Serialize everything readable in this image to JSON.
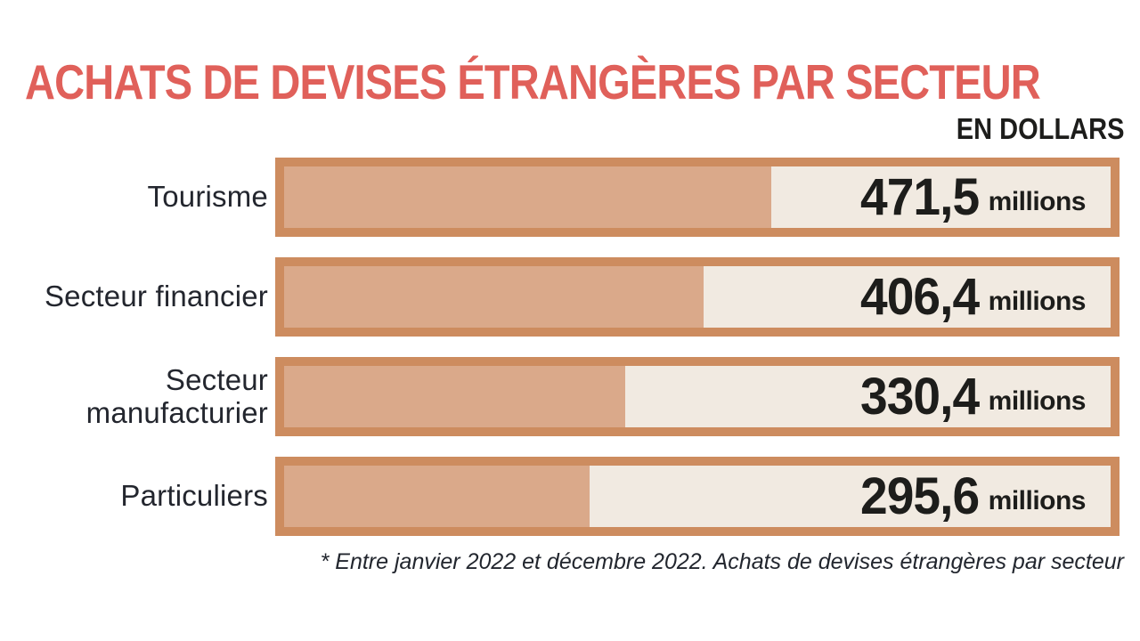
{
  "title": "ACHATS DE DEVISES ÉTRANGÈRES PAR SECTEUR",
  "subtitle": "EN DOLLARS",
  "footnote": "* Entre janvier 2022 et décembre 2022. Achats de devises étrangères par secteur",
  "colors": {
    "title_red": "#e0605a",
    "bar_border": "#cd8c5f",
    "bar_fill": "#daa98a",
    "bar_background": "#f1eae1",
    "text_dark": "#1d1d1b",
    "label_dark": "#23262e",
    "page_background": "#ffffff"
  },
  "chart_data": {
    "type": "bar",
    "orientation": "horizontal",
    "title": "ACHATS DE DEVISES ÉTRANGÈRES PAR SECTEUR",
    "subtitle": "EN DOLLARS",
    "unit_label": "millions",
    "categories": [
      "Tourisme",
      "Secteur financier",
      "Secteur manufacturier",
      "Particuliers"
    ],
    "values": [
      471.5,
      406.4,
      330.4,
      295.6
    ],
    "value_labels": [
      "471,5",
      "406,4",
      "330,4",
      "295,6"
    ],
    "xlim": [
      0,
      800
    ],
    "grid": false,
    "legend": false,
    "footnote": "* Entre janvier 2022 et décembre 2022. Achats de devises étrangères par secteur"
  }
}
